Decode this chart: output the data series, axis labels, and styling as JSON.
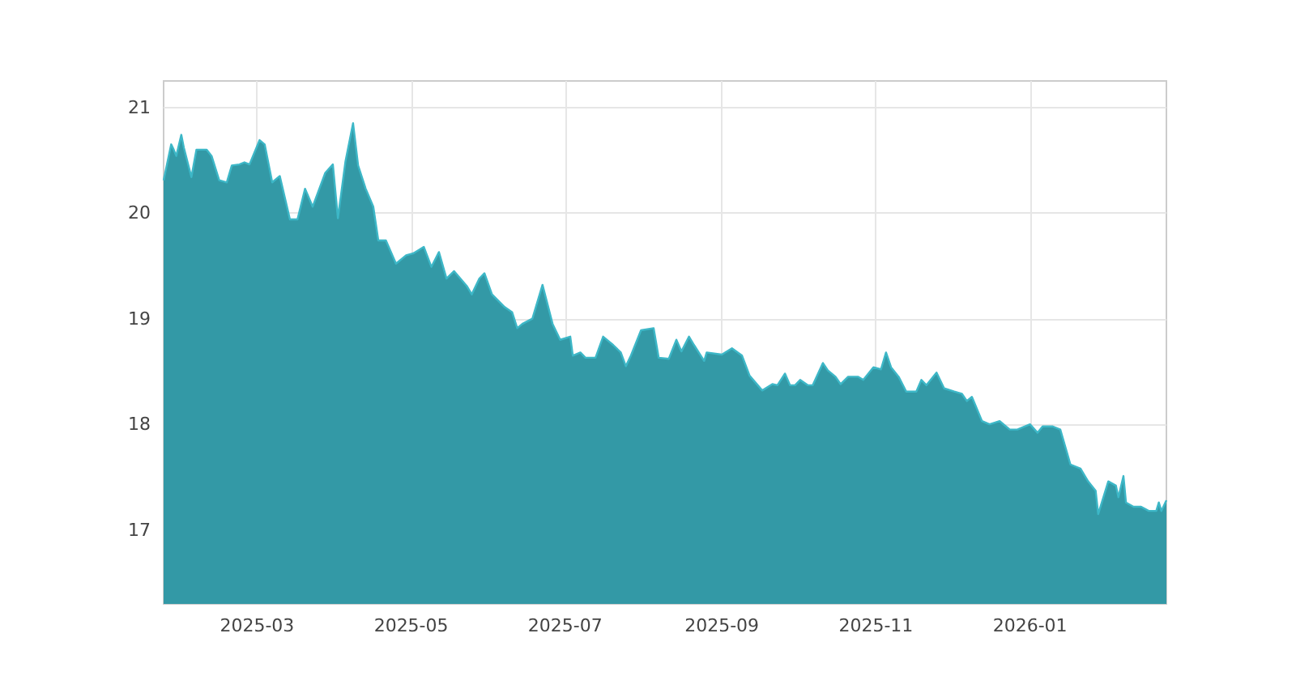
{
  "chart_data": {
    "type": "area",
    "x": [
      "2025-01-23",
      "2025-01-26",
      "2025-01-27",
      "2025-01-28",
      "2025-01-30",
      "2025-01-31",
      "2025-02-03",
      "2025-02-05",
      "2025-02-07",
      "2025-02-09",
      "2025-02-11",
      "2025-02-14",
      "2025-02-17",
      "2025-02-19",
      "2025-02-22",
      "2025-02-24",
      "2025-02-26",
      "2025-03-02",
      "2025-03-04",
      "2025-03-07",
      "2025-03-10",
      "2025-03-14",
      "2025-03-17",
      "2025-03-20",
      "2025-03-23",
      "2025-03-28",
      "2025-03-31",
      "2025-04-02",
      "2025-04-05",
      "2025-04-08",
      "2025-04-10",
      "2025-04-13",
      "2025-04-16",
      "2025-04-18",
      "2025-04-21",
      "2025-04-25",
      "2025-04-29",
      "2025-05-02",
      "2025-05-06",
      "2025-05-09",
      "2025-05-12",
      "2025-05-15",
      "2025-05-18",
      "2025-05-23",
      "2025-05-25",
      "2025-05-28",
      "2025-05-30",
      "2025-06-02",
      "2025-06-07",
      "2025-06-10",
      "2025-06-12",
      "2025-06-14",
      "2025-06-18",
      "2025-06-22",
      "2025-06-26",
      "2025-06-29",
      "2025-07-03",
      "2025-07-04",
      "2025-07-07",
      "2025-07-09",
      "2025-07-13",
      "2025-07-16",
      "2025-07-20",
      "2025-07-23",
      "2025-07-25",
      "2025-07-27",
      "2025-07-31",
      "2025-08-05",
      "2025-08-07",
      "2025-08-11",
      "2025-08-14",
      "2025-08-16",
      "2025-08-19",
      "2025-08-21",
      "2025-08-25",
      "2025-08-26",
      "2025-09-01",
      "2025-09-05",
      "2025-09-09",
      "2025-09-12",
      "2025-09-17",
      "2025-09-21",
      "2025-09-23",
      "2025-09-26",
      "2025-09-28",
      "2025-09-30",
      "2025-10-02",
      "2025-10-05",
      "2025-10-07",
      "2025-10-11",
      "2025-10-13",
      "2025-10-16",
      "2025-10-18",
      "2025-10-21",
      "2025-10-25",
      "2025-10-27",
      "2025-10-31",
      "2025-11-03",
      "2025-11-05",
      "2025-11-07",
      "2025-11-10",
      "2025-11-13",
      "2025-11-17",
      "2025-11-19",
      "2025-11-21",
      "2025-11-25",
      "2025-11-28",
      "2025-12-02",
      "2025-12-05",
      "2025-12-07",
      "2025-12-09",
      "2025-12-13",
      "2025-12-16",
      "2025-12-20",
      "2025-12-24",
      "2025-12-27",
      "2026-01-01",
      "2026-01-04",
      "2026-01-06",
      "2026-01-10",
      "2026-01-13",
      "2026-01-17",
      "2026-01-21",
      "2026-01-24",
      "2026-01-27",
      "2026-01-28",
      "2026-02-01",
      "2026-02-04",
      "2026-02-05",
      "2026-02-07",
      "2026-02-08",
      "2026-02-11",
      "2026-02-14",
      "2026-02-17",
      "2026-02-20",
      "2026-02-21",
      "2026-02-22",
      "2026-02-24"
    ],
    "series": [
      {
        "color": "#3399a6",
        "values": [
          20.31,
          20.65,
          20.6,
          20.54,
          20.74,
          20.62,
          20.34,
          20.6,
          20.6,
          20.6,
          20.54,
          20.31,
          20.29,
          20.45,
          20.46,
          20.48,
          20.46,
          20.69,
          20.65,
          20.29,
          20.35,
          19.94,
          19.94,
          20.23,
          20.06,
          20.38,
          20.46,
          19.95,
          20.49,
          20.85,
          20.45,
          20.23,
          20.06,
          19.74,
          19.74,
          19.52,
          19.6,
          19.62,
          19.68,
          19.49,
          19.63,
          19.38,
          19.45,
          19.31,
          19.23,
          19.38,
          19.43,
          19.23,
          19.11,
          19.06,
          18.91,
          18.95,
          19.0,
          19.32,
          18.95,
          18.8,
          18.83,
          18.65,
          18.68,
          18.63,
          18.63,
          18.83,
          18.75,
          18.68,
          18.55,
          18.65,
          18.89,
          18.91,
          18.63,
          18.62,
          18.8,
          18.69,
          18.83,
          18.75,
          18.6,
          18.68,
          18.66,
          18.72,
          18.65,
          18.46,
          18.32,
          18.38,
          18.37,
          18.48,
          18.37,
          18.37,
          18.42,
          18.37,
          18.37,
          18.58,
          18.51,
          18.45,
          18.38,
          18.45,
          18.45,
          18.42,
          18.54,
          18.52,
          18.68,
          18.54,
          18.45,
          18.31,
          18.31,
          18.42,
          18.37,
          18.49,
          18.34,
          18.31,
          18.29,
          18.22,
          18.26,
          18.03,
          18.0,
          18.03,
          17.95,
          17.95,
          18.0,
          17.92,
          17.98,
          17.98,
          17.95,
          17.62,
          17.58,
          17.46,
          17.37,
          17.15,
          17.46,
          17.42,
          17.31,
          17.51,
          17.26,
          17.22,
          17.22,
          17.18,
          17.18,
          17.26,
          17.18,
          17.28
        ]
      }
    ],
    "xlim": [
      "2025-01-23",
      "2026-02-24"
    ],
    "xticks": [
      "2025-03",
      "2025-05",
      "2025-07",
      "2025-09",
      "2025-11",
      "2026-01"
    ],
    "ylim": [
      16.3,
      21.25
    ],
    "yticks": [
      17,
      18,
      19,
      20,
      21
    ],
    "grid": true
  }
}
